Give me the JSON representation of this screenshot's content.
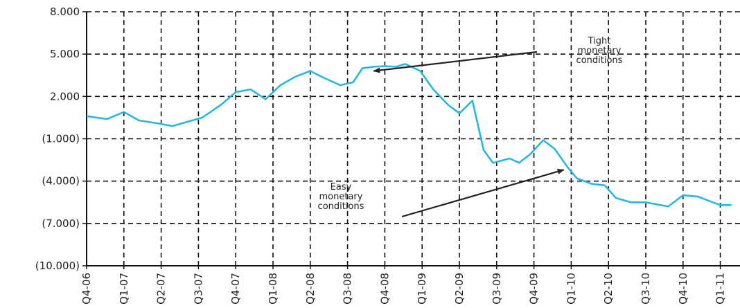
{
  "chart_data": {
    "type": "line",
    "title": "",
    "xlabel": "",
    "ylabel": "",
    "ylim": [
      -10000,
      8000
    ],
    "y_ticks": [
      8000,
      5000,
      2000,
      -1000,
      -4000,
      -7000,
      -10000
    ],
    "y_tick_labels": [
      "8.000",
      "5.000",
      "2.000",
      "(1.000)",
      "(4.000)",
      "(7.000)",
      "(10.000)"
    ],
    "x_ticks": [
      "Q4-06",
      "Q1-07",
      "Q2-07",
      "Q3-07",
      "Q4-07",
      "Q1-08",
      "Q2-08",
      "Q3-08",
      "Q4-08",
      "Q1-09",
      "Q2-09",
      "Q3-09",
      "Q4-09",
      "Q1-10",
      "Q2-10",
      "Q3-10",
      "Q4-10",
      "Q1-11"
    ],
    "grid": true,
    "line_color": "#29b6e0",
    "series": [
      {
        "x": [
          0,
          0.55,
          1.0,
          1.4,
          1.9,
          2.3,
          2.7,
          3.1,
          3.6,
          4.0,
          4.4,
          4.8,
          5.2,
          5.6,
          6.0,
          6.3,
          6.8,
          7.15,
          7.4,
          7.7,
          8.0,
          8.3,
          8.55,
          8.95,
          9.3,
          9.7,
          10.0,
          10.35,
          10.65,
          10.9,
          11.35,
          11.6,
          11.9,
          12.25,
          12.55,
          12.9,
          13.15,
          13.55,
          13.9,
          14.2,
          14.6,
          15.0,
          15.2,
          15.6,
          16.0,
          16.4,
          16.8,
          17.0,
          17.3
        ],
        "values": [
          600,
          400,
          900,
          300,
          100,
          -100,
          200,
          500,
          1400,
          2300,
          2500,
          1800,
          2800,
          3400,
          3800,
          3400,
          2800,
          3000,
          4000,
          4100,
          4150,
          4100,
          4300,
          3800,
          2500,
          1400,
          800,
          1700,
          -1800,
          -2700,
          -2400,
          -2700,
          -2100,
          -1100,
          -1700,
          -3000,
          -3800,
          -4200,
          -4300,
          -5200,
          -5500,
          -5500,
          -5600,
          -5800,
          -5000,
          -5100,
          -5500,
          -5700,
          -5700
        ]
      }
    ],
    "annotations": [
      {
        "lines": [
          "Tight",
          "monetary",
          "conditions"
        ],
        "points_to": [
          7.7,
          3800
        ]
      },
      {
        "lines": [
          "Easy",
          "monetary",
          "conditions"
        ],
        "points_to": [
          12.8,
          -3200
        ]
      }
    ]
  }
}
